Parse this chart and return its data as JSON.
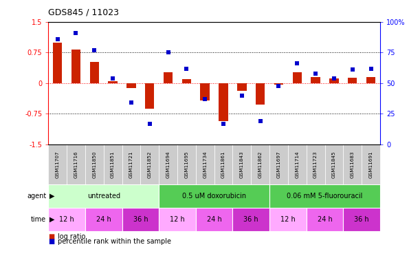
{
  "title": "GDS845 / 11023",
  "samples": [
    "GSM11707",
    "GSM11716",
    "GSM11850",
    "GSM11851",
    "GSM11721",
    "GSM11852",
    "GSM11694",
    "GSM11695",
    "GSM11734",
    "GSM11861",
    "GSM11843",
    "GSM11862",
    "GSM11697",
    "GSM11714",
    "GSM11723",
    "GSM11845",
    "GSM11683",
    "GSM11691"
  ],
  "log_ratio": [
    1.0,
    0.82,
    0.52,
    0.05,
    -0.12,
    -0.62,
    0.27,
    0.1,
    -0.42,
    -0.92,
    -0.18,
    -0.52,
    -0.04,
    0.27,
    0.15,
    0.12,
    0.13,
    0.15
  ],
  "percentile": [
    86,
    91,
    77,
    54,
    34,
    17,
    75,
    62,
    37,
    17,
    40,
    19,
    48,
    66,
    58,
    54,
    61,
    62
  ],
  "agent_groups": [
    {
      "label": "untreated",
      "start": 0,
      "end": 6,
      "color": "#ccffcc"
    },
    {
      "label": "0.5 uM doxorubicin",
      "start": 6,
      "end": 12,
      "color": "#55cc55"
    },
    {
      "label": "0.06 mM 5-fluorouracil",
      "start": 12,
      "end": 18,
      "color": "#55cc55"
    }
  ],
  "time_groups": [
    {
      "label": "12 h",
      "start": 0,
      "end": 2,
      "color": "#ffaaff"
    },
    {
      "label": "24 h",
      "start": 2,
      "end": 4,
      "color": "#ee66ee"
    },
    {
      "label": "36 h",
      "start": 4,
      "end": 6,
      "color": "#cc33cc"
    },
    {
      "label": "12 h",
      "start": 6,
      "end": 8,
      "color": "#ffaaff"
    },
    {
      "label": "24 h",
      "start": 8,
      "end": 10,
      "color": "#ee66ee"
    },
    {
      "label": "36 h",
      "start": 10,
      "end": 12,
      "color": "#cc33cc"
    },
    {
      "label": "12 h",
      "start": 12,
      "end": 14,
      "color": "#ffaaff"
    },
    {
      "label": "24 h",
      "start": 14,
      "end": 16,
      "color": "#ee66ee"
    },
    {
      "label": "36 h",
      "start": 16,
      "end": 18,
      "color": "#cc33cc"
    }
  ],
  "bar_color": "#cc2200",
  "dot_color": "#0000cc",
  "ylim_left": [
    -1.5,
    1.5
  ],
  "ylim_right": [
    0,
    100
  ],
  "yticks_left": [
    -1.5,
    -0.75,
    0.0,
    0.75,
    1.5
  ],
  "ytick_labels_left": [
    "-1.5",
    "-0.75",
    "0",
    "0.75",
    "1.5"
  ],
  "yticks_right": [
    0,
    25,
    50,
    75,
    100
  ],
  "ytick_labels_right": [
    "0",
    "25",
    "50",
    "75",
    "100%"
  ],
  "hline_dotted": [
    0.75,
    -0.75
  ],
  "hline_red": 0.0,
  "legend_items": [
    {
      "label": "log ratio",
      "color": "#cc2200"
    },
    {
      "label": "percentile rank within the sample",
      "color": "#0000cc"
    }
  ]
}
